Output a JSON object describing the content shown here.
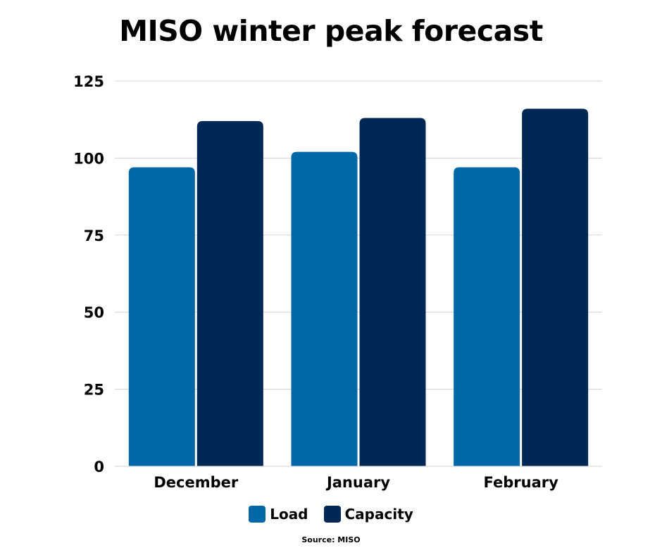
{
  "chart_data": {
    "type": "bar",
    "title": "MISO winter peak forecast",
    "categories": [
      "December",
      "January",
      "February"
    ],
    "series": [
      {
        "name": "Load",
        "values": [
          97,
          102,
          97
        ]
      },
      {
        "name": "Capacity",
        "values": [
          112,
          113,
          116
        ]
      }
    ],
    "ylim": [
      0,
      125
    ],
    "yticks": [
      0,
      25,
      50,
      75,
      100,
      125
    ],
    "xlabel": "",
    "ylabel": "",
    "grid": true,
    "legend_position": "bottom-center",
    "source": "Source: MISO"
  },
  "colors": {
    "Load": "#0068a6",
    "Capacity": "#002855",
    "grid": "#d3d3d3"
  }
}
